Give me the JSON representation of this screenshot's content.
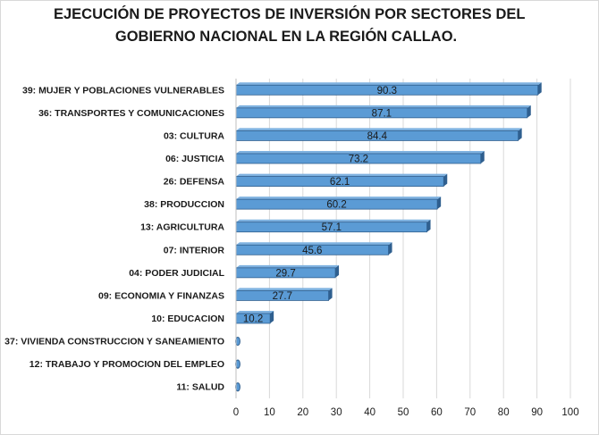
{
  "chart_data": {
    "type": "bar",
    "orientation": "horizontal",
    "title_lines": [
      "EJECUCIÓN DE PROYECTOS DE INVERSIÓN POR SECTORES DEL",
      "GOBIERNO NACIONAL EN LA REGIÓN CALLAO."
    ],
    "categories": [
      "39: MUJER Y POBLACIONES VULNERABLES",
      "36: TRANSPORTES Y COMUNICACIONES",
      "03: CULTURA",
      "06: JUSTICIA",
      "26: DEFENSA",
      "38: PRODUCCION",
      "13: AGRICULTURA",
      "07: INTERIOR",
      "04: PODER JUDICIAL",
      "09: ECONOMIA Y FINANZAS",
      "10: EDUCACION",
      "37: VIVIENDA CONSTRUCCION Y SANEAMIENTO",
      "12: TRABAJO Y PROMOCION DEL EMPLEO",
      "11: SALUD"
    ],
    "values": [
      90.3,
      87.1,
      84.4,
      73.2,
      62.1,
      60.2,
      57.1,
      45.6,
      29.7,
      27.7,
      10.2,
      0,
      0,
      0
    ],
    "value_labels": [
      "90.3",
      "87.1",
      "84.4",
      "73.2",
      "62.1",
      "60.2",
      "57.1",
      "45.6",
      "29.7",
      "27.7",
      "10.2",
      "",
      "",
      ""
    ],
    "xlim": [
      0,
      100
    ],
    "xticks": [
      0,
      10,
      20,
      30,
      40,
      50,
      60,
      70,
      80,
      90,
      100
    ],
    "grid": "vertical",
    "legend": "none",
    "bar_color": "#5b9bd5",
    "bar_edge_color": "#2f5f8f",
    "bar_shadow_color": "#8c8c8c",
    "grid_color": "#d9d9d9"
  }
}
